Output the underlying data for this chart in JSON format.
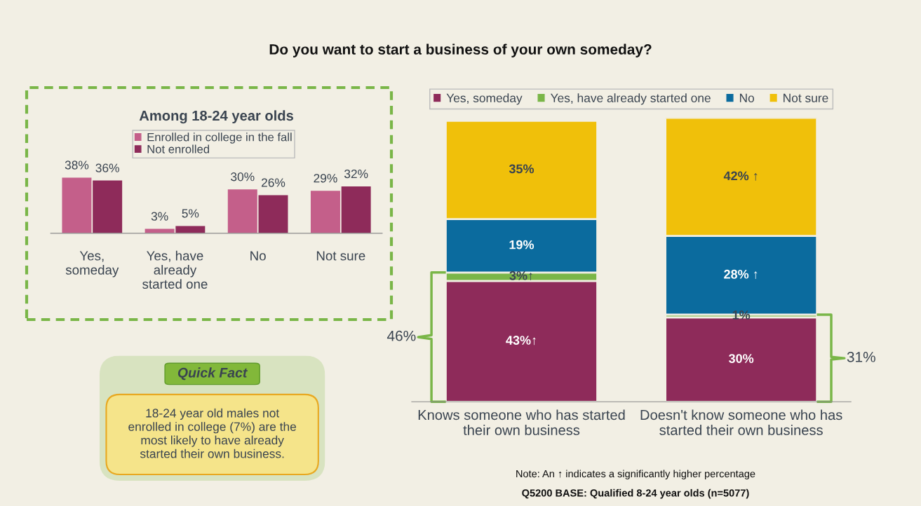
{
  "chart_data": [
    {
      "type": "bar",
      "title": "Among 18-24 year olds",
      "categories": [
        "Yes,\nsomeday",
        "Yes, have\nalready\nstarted one",
        "No",
        "Not sure"
      ],
      "series": [
        {
          "name": "Enrolled in college in the fall",
          "color": "#c45f8a",
          "values": [
            38,
            3,
            30,
            29
          ],
          "value_labels": [
            "38%",
            "3%",
            "30%",
            "29%"
          ]
        },
        {
          "name": "Not enrolled",
          "color": "#8e2b5a",
          "values": [
            36,
            5,
            26,
            32
          ],
          "value_labels": [
            "36%",
            "5%",
            "26%",
            "32%"
          ]
        }
      ],
      "legend": "top"
    },
    {
      "type": "bar",
      "stacked": true,
      "title": "Do you want to start a business of your own someday?",
      "categories": [
        "Knows someone who has started\ntheir own business",
        "Doesn't know someone who has\nstarted their own business"
      ],
      "series": [
        {
          "name": "Yes, someday",
          "color": "#8e2b5a",
          "values": [
            43,
            30
          ],
          "value_labels": [
            "43%↑",
            "30%"
          ]
        },
        {
          "name": "Yes, have already started one",
          "color": "#7ab648",
          "values": [
            3,
            1
          ],
          "value_labels": [
            "3%↑",
            "1%"
          ]
        },
        {
          "name": "No",
          "color": "#0b6b9e",
          "values": [
            19,
            28
          ],
          "value_labels": [
            "19%",
            "28% ↑"
          ]
        },
        {
          "name": "Not sure",
          "color": "#f0c00a",
          "values": [
            35,
            42
          ],
          "value_labels": [
            "35%",
            "42% ↑"
          ]
        }
      ],
      "ylim": [
        0,
        101
      ],
      "legend": "top",
      "annotations": [
        "46%",
        "31%",
        "Note: An ↑ indicates a significantly higher percentage",
        "Q5200 BASE: Qualified 8-24 year olds (n=5077)"
      ]
    },
    {
      "type": "other",
      "title": "Quick Fact",
      "annotations": [
        "18-24 year old males not\nenrolled in college (7%) are the\nmost likely to have already\nstarted their own business."
      ]
    }
  ]
}
